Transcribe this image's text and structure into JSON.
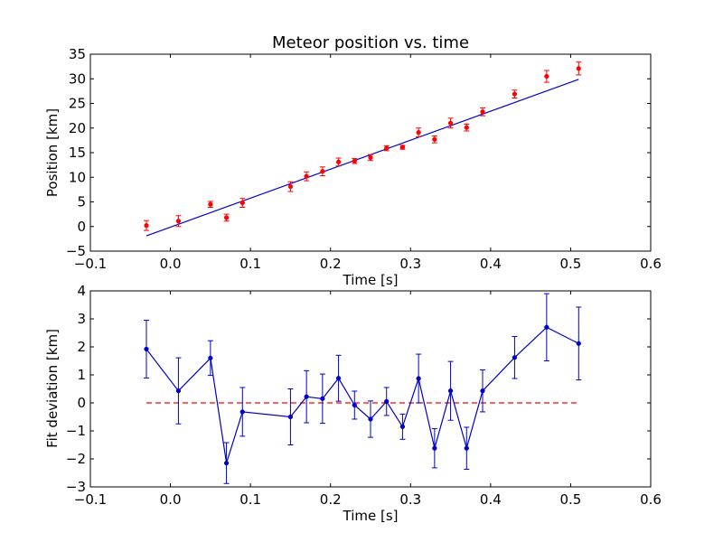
{
  "chart_data": [
    {
      "type": "scatter",
      "title": "Meteor position vs. time",
      "xlabel": "Time [s]",
      "ylabel": "Position [km]",
      "xlim": [
        -0.1,
        0.6
      ],
      "ylim": [
        -5,
        35
      ],
      "xticks": [
        -0.1,
        0.0,
        0.1,
        0.2,
        0.3,
        0.4,
        0.5,
        0.6
      ],
      "xtick_labels": [
        "−0.1",
        "0.0",
        "0.1",
        "0.2",
        "0.3",
        "0.4",
        "0.5",
        "0.6"
      ],
      "yticks": [
        -5,
        0,
        5,
        10,
        15,
        20,
        25,
        30,
        35
      ],
      "ytick_labels": [
        "−5",
        "0",
        "5",
        "10",
        "15",
        "20",
        "25",
        "30",
        "35"
      ],
      "grid": false,
      "series": [
        {
          "kind": "errorbar-points",
          "color": "#ff0000",
          "points": [
            {
              "x": -0.03,
              "y": 0.2,
              "err": 1.0
            },
            {
              "x": 0.01,
              "y": 1.1,
              "err": 1.1
            },
            {
              "x": 0.05,
              "y": 4.5,
              "err": 0.6
            },
            {
              "x": 0.07,
              "y": 1.8,
              "err": 0.7
            },
            {
              "x": 0.09,
              "y": 4.8,
              "err": 0.9
            },
            {
              "x": 0.15,
              "y": 8.1,
              "err": 1.0
            },
            {
              "x": 0.17,
              "y": 10.2,
              "err": 0.9
            },
            {
              "x": 0.19,
              "y": 11.2,
              "err": 0.9
            },
            {
              "x": 0.21,
              "y": 13.1,
              "err": 0.8
            },
            {
              "x": 0.23,
              "y": 13.3,
              "err": 0.5
            },
            {
              "x": 0.25,
              "y": 14.0,
              "err": 0.6
            },
            {
              "x": 0.27,
              "y": 15.9,
              "err": 0.5
            },
            {
              "x": 0.29,
              "y": 16.1,
              "err": 0.4
            },
            {
              "x": 0.31,
              "y": 19.1,
              "err": 0.9
            },
            {
              "x": 0.33,
              "y": 17.7,
              "err": 0.7
            },
            {
              "x": 0.35,
              "y": 21.0,
              "err": 1.0
            },
            {
              "x": 0.37,
              "y": 20.1,
              "err": 0.7
            },
            {
              "x": 0.39,
              "y": 23.3,
              "err": 0.8
            },
            {
              "x": 0.43,
              "y": 26.9,
              "err": 0.8
            },
            {
              "x": 0.47,
              "y": 30.5,
              "err": 1.2
            },
            {
              "x": 0.51,
              "y": 32.1,
              "err": 1.3
            }
          ]
        },
        {
          "kind": "fit-line",
          "color": "#0000cc",
          "x": [
            -0.03,
            0.51
          ],
          "y": [
            -1.9,
            29.9
          ]
        }
      ]
    },
    {
      "type": "line",
      "title": "",
      "xlabel": "Time [s]",
      "ylabel": "Fit deviation [km]",
      "xlim": [
        -0.1,
        0.6
      ],
      "ylim": [
        -3,
        4
      ],
      "xticks": [
        -0.1,
        0.0,
        0.1,
        0.2,
        0.3,
        0.4,
        0.5,
        0.6
      ],
      "xtick_labels": [
        "−0.1",
        "0.0",
        "0.1",
        "0.2",
        "0.3",
        "0.4",
        "0.5",
        "0.6"
      ],
      "yticks": [
        -3,
        -2,
        -1,
        0,
        1,
        2,
        3,
        4
      ],
      "ytick_labels": [
        "−3",
        "−2",
        "−1",
        "0",
        "1",
        "2",
        "3",
        "4"
      ],
      "grid": false,
      "series": [
        {
          "kind": "errorbar-line",
          "color": "#0000cc",
          "points": [
            {
              "x": -0.03,
              "y": 1.92,
              "err": 1.03
            },
            {
              "x": 0.01,
              "y": 0.43,
              "err": 1.18
            },
            {
              "x": 0.05,
              "y": 1.6,
              "err": 0.62
            },
            {
              "x": 0.07,
              "y": -2.15,
              "err": 0.73
            },
            {
              "x": 0.09,
              "y": -0.32,
              "err": 0.87
            },
            {
              "x": 0.15,
              "y": -0.5,
              "err": 1.0
            },
            {
              "x": 0.17,
              "y": 0.22,
              "err": 0.93
            },
            {
              "x": 0.19,
              "y": 0.15,
              "err": 0.88
            },
            {
              "x": 0.21,
              "y": 0.88,
              "err": 0.82
            },
            {
              "x": 0.23,
              "y": -0.08,
              "err": 0.5
            },
            {
              "x": 0.25,
              "y": -0.58,
              "err": 0.65
            },
            {
              "x": 0.27,
              "y": 0.05,
              "err": 0.5
            },
            {
              "x": 0.29,
              "y": -0.85,
              "err": 0.45
            },
            {
              "x": 0.31,
              "y": 0.87,
              "err": 0.87
            },
            {
              "x": 0.33,
              "y": -1.62,
              "err": 0.7
            },
            {
              "x": 0.35,
              "y": 0.43,
              "err": 1.05
            },
            {
              "x": 0.37,
              "y": -1.62,
              "err": 0.75
            },
            {
              "x": 0.39,
              "y": 0.43,
              "err": 0.75
            },
            {
              "x": 0.43,
              "y": 1.62,
              "err": 0.75
            },
            {
              "x": 0.47,
              "y": 2.7,
              "err": 1.2
            },
            {
              "x": 0.51,
              "y": 2.12,
              "err": 1.3
            }
          ]
        },
        {
          "kind": "reference-line",
          "style": "dashed",
          "color": "#ff0000",
          "x": [
            -0.03,
            0.51
          ],
          "y": [
            0,
            0
          ]
        }
      ]
    }
  ]
}
